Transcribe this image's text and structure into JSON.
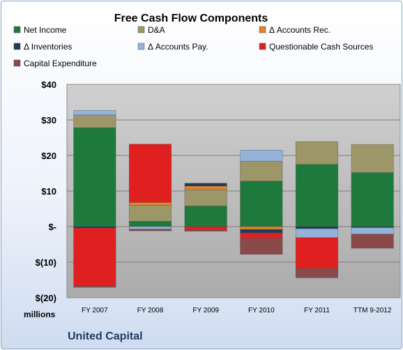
{
  "chart_data": {
    "type": "bar",
    "stacked": true,
    "title": "Free Cash Flow Components",
    "ylabel_unit": "millions",
    "footer": "United Capital",
    "ylim": [
      -20,
      40
    ],
    "yticks": [
      {
        "value": 40,
        "label": "$40"
      },
      {
        "value": 30,
        "label": "$30"
      },
      {
        "value": 20,
        "label": "$20"
      },
      {
        "value": 10,
        "label": "$10"
      },
      {
        "value": 0,
        "label": "$-"
      },
      {
        "value": -10,
        "label": "$(10)"
      },
      {
        "value": -20,
        "label": "$(20)"
      }
    ],
    "grid": true,
    "legend_position": "top",
    "categories": [
      "FY 2007",
      "FY 2008",
      "FY 2009",
      "FY 2010",
      "FY 2011",
      "TTM 9-2012"
    ],
    "series": [
      {
        "name": "Net Income",
        "color": "#1e7a3c",
        "values": [
          27.8,
          1.5,
          5.8,
          12.8,
          17.5,
          15.2
        ]
      },
      {
        "name": "D&A",
        "color": "#9c9668",
        "values": [
          3.6,
          4.5,
          4.6,
          5.6,
          6.4,
          7.9
        ]
      },
      {
        "name": "Δ Accounts Rec.",
        "color": "#e4822a",
        "values": [
          0,
          0.8,
          1.0,
          -0.8,
          0,
          0
        ]
      },
      {
        "name": "Δ Inventories",
        "color": "#1f3c5a",
        "values": [
          -0.4,
          0,
          0.8,
          -1.0,
          -0.6,
          -0.3
        ]
      },
      {
        "name": "Δ Accounts Pay.",
        "color": "#93b3da",
        "values": [
          1.3,
          -0.7,
          0,
          3.1,
          -2.5,
          -1.8
        ]
      },
      {
        "name": "Questionable Cash Sources",
        "color": "#e02020",
        "values": [
          -16.2,
          16.4,
          -1.0,
          -1.5,
          -8.7,
          0
        ]
      },
      {
        "name": "Capital Expenditure",
        "color": "#8b4a4a",
        "values": [
          -0.5,
          -0.5,
          -0.3,
          -4.5,
          -2.6,
          -4.0
        ]
      }
    ]
  }
}
